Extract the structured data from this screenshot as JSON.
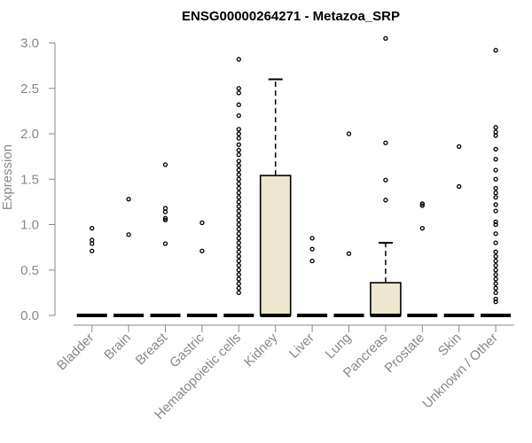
{
  "chart_data": {
    "type": "boxplot",
    "title": "ENSG00000264271 - Metazoa_SRP",
    "xlabel": "",
    "ylabel": "Expression",
    "ylim": [
      0,
      3.0
    ],
    "yticks": [
      "0.0",
      "0.5",
      "1.0",
      "1.5",
      "2.0",
      "2.5",
      "3.0"
    ],
    "categories": [
      "Bladder",
      "Brain",
      "Breast",
      "Gastric",
      "Hematopoietic cells",
      "Kidney",
      "Liver",
      "Lung",
      "Pancreas",
      "Prostate",
      "Skin",
      "Unknown / Other"
    ],
    "box_fill": "#ede7cf",
    "boxes": [
      {
        "category": "Bladder",
        "q1": 0,
        "median": 0,
        "q3": 0,
        "whisker_low": 0,
        "whisker_high": 0,
        "outliers": [
          0.71,
          0.79,
          0.83,
          0.96
        ]
      },
      {
        "category": "Brain",
        "q1": 0,
        "median": 0,
        "q3": 0,
        "whisker_low": 0,
        "whisker_high": 0,
        "outliers": [
          0.89,
          1.28
        ]
      },
      {
        "category": "Breast",
        "q1": 0,
        "median": 0,
        "q3": 0,
        "whisker_low": 0,
        "whisker_high": 0,
        "outliers": [
          0.79,
          1.05,
          1.07,
          1.14,
          1.18,
          1.66
        ]
      },
      {
        "category": "Gastric",
        "q1": 0,
        "median": 0,
        "q3": 0,
        "whisker_low": 0,
        "whisker_high": 0,
        "outliers": [
          0.71,
          1.02
        ]
      },
      {
        "category": "Hematopoietic cells",
        "q1": 0,
        "median": 0,
        "q3": 0,
        "whisker_low": 0,
        "whisker_high": 0,
        "outliers": [
          0.25,
          0.3,
          0.35,
          0.4,
          0.45,
          0.5,
          0.55,
          0.6,
          0.65,
          0.7,
          0.75,
          0.8,
          0.85,
          0.9,
          0.95,
          1.0,
          1.05,
          1.1,
          1.15,
          1.2,
          1.25,
          1.3,
          1.35,
          1.4,
          1.45,
          1.5,
          1.55,
          1.6,
          1.65,
          1.7,
          1.77,
          1.82,
          1.88,
          1.95,
          2.0,
          2.05,
          2.2,
          2.32,
          2.45,
          2.5,
          2.82
        ]
      },
      {
        "category": "Kidney",
        "q1": 0,
        "median": 0,
        "q3": 1.54,
        "whisker_low": 0,
        "whisker_high": 2.6,
        "outliers": []
      },
      {
        "category": "Liver",
        "q1": 0,
        "median": 0,
        "q3": 0,
        "whisker_low": 0,
        "whisker_high": 0,
        "outliers": [
          0.6,
          0.73,
          0.85
        ]
      },
      {
        "category": "Lung",
        "q1": 0,
        "median": 0,
        "q3": 0,
        "whisker_low": 0,
        "whisker_high": 0,
        "outliers": [
          0.68,
          2.0
        ]
      },
      {
        "category": "Pancreas",
        "q1": 0,
        "median": 0,
        "q3": 0.36,
        "whisker_low": 0,
        "whisker_high": 0.8,
        "outliers": [
          1.27,
          1.49,
          1.9,
          3.05
        ]
      },
      {
        "category": "Prostate",
        "q1": 0,
        "median": 0,
        "q3": 0,
        "whisker_low": 0,
        "whisker_high": 0,
        "outliers": [
          0.96,
          1.21,
          1.23
        ]
      },
      {
        "category": "Skin",
        "q1": 0,
        "median": 0,
        "q3": 0,
        "whisker_low": 0,
        "whisker_high": 0,
        "outliers": [
          1.42,
          1.86
        ]
      },
      {
        "category": "Unknown / Other",
        "q1": 0,
        "median": 0,
        "q3": 0,
        "whisker_low": 0,
        "whisker_high": 0,
        "outliers": [
          0.15,
          0.18,
          0.25,
          0.3,
          0.35,
          0.4,
          0.45,
          0.5,
          0.55,
          0.6,
          0.65,
          0.7,
          0.8,
          0.9,
          1.0,
          1.03,
          1.15,
          1.22,
          1.3,
          1.35,
          1.4,
          1.5,
          1.6,
          1.72,
          1.83,
          1.98,
          2.02,
          2.07,
          2.92
        ]
      }
    ]
  }
}
